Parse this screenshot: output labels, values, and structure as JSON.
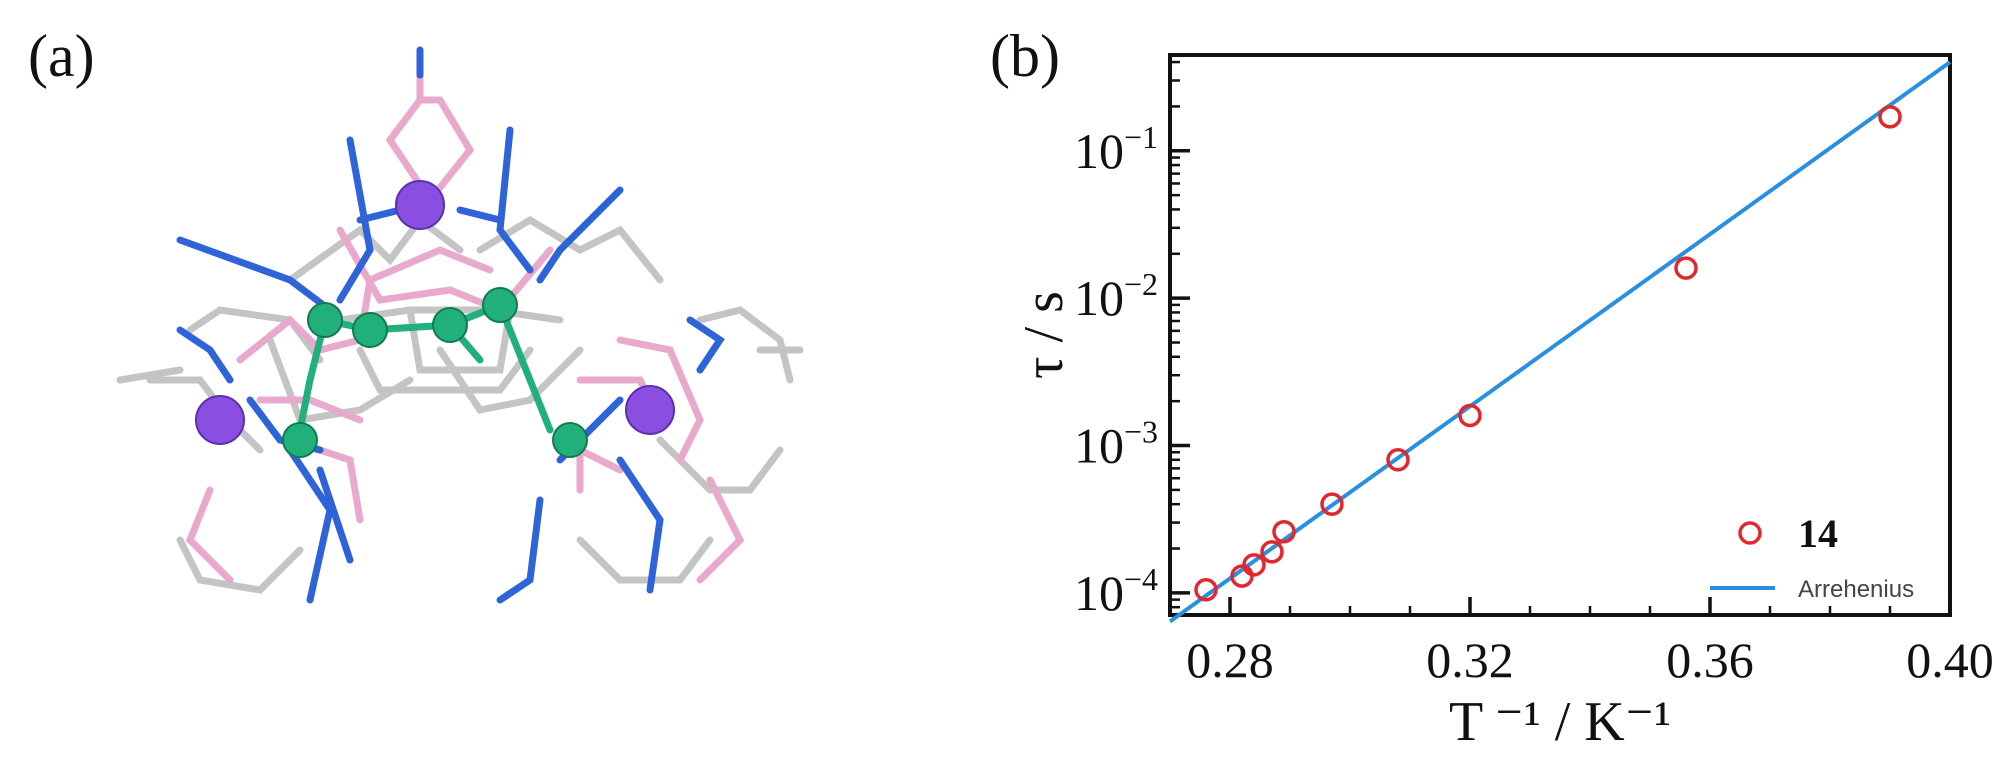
{
  "panels": {
    "a_label": "(a)",
    "b_label": "(b)"
  },
  "structure": {
    "atom_colors": {
      "lanthanide": "#8a4fe0",
      "metal": "#22b07a",
      "oxygen_bond": "#e8a9cc",
      "nitrogen_bond": "#2f63d8",
      "carbon_bond": "#c4c4c4"
    }
  },
  "chart_data": {
    "type": "scatter",
    "xlabel": "T ⁻¹ / K⁻¹",
    "ylabel": "τ / s",
    "xlim": [
      0.27,
      0.4
    ],
    "ylim_log10": [
      -4.15,
      -0.35
    ],
    "y_scale": "log",
    "x_ticks": [
      {
        "value": 0.28,
        "label": "0.28"
      },
      {
        "value": 0.32,
        "label": "0.32"
      },
      {
        "value": 0.36,
        "label": "0.36"
      },
      {
        "value": 0.4,
        "label": "0.40"
      }
    ],
    "y_ticks": [
      {
        "exp": -4,
        "base": "10",
        "sup": "−4"
      },
      {
        "exp": -3,
        "base": "10",
        "sup": "−3"
      },
      {
        "exp": -2,
        "base": "10",
        "sup": "−2"
      },
      {
        "exp": -1,
        "base": "10",
        "sup": "−1"
      }
    ],
    "series": [
      {
        "name": "14",
        "kind": "points",
        "color": "#e0282e",
        "x": [
          0.276,
          0.282,
          0.284,
          0.287,
          0.289,
          0.297,
          0.308,
          0.32,
          0.356,
          0.39
        ],
        "y": [
          0.000105,
          0.00013,
          0.000155,
          0.00019,
          0.00026,
          0.0004,
          0.0008,
          0.0016,
          0.016,
          0.17
        ]
      },
      {
        "name": "Arrehenius",
        "kind": "line",
        "color": "#2a8fe0",
        "x": [
          0.27,
          0.4
        ],
        "y": [
          6.4e-05,
          0.4
        ]
      }
    ],
    "legend_position": "bottom-right",
    "grid": false
  }
}
